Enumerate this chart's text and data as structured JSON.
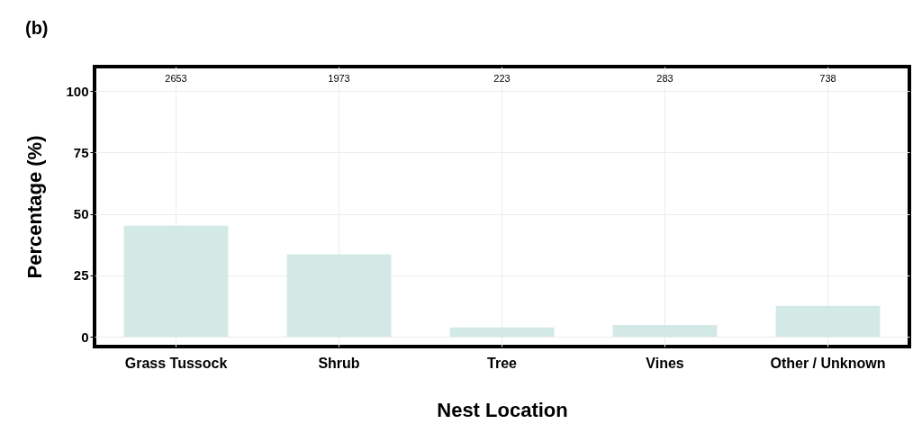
{
  "chart_data": {
    "type": "bar",
    "title": "(b)",
    "xlabel": "Nest Location",
    "ylabel": "Percentage (%)",
    "categories": [
      "Grass Tussock",
      "Shrub",
      "Tree",
      "Vines",
      "Other / Unknown"
    ],
    "values": [
      45.2,
      33.6,
      3.8,
      4.8,
      12.6
    ],
    "annotations": [
      "2653",
      "1973",
      "223",
      "283",
      "738"
    ],
    "color": "#d3e9e6",
    "ylim": [
      -4,
      110
    ],
    "yticks": [
      0,
      25,
      50,
      75,
      100
    ],
    "grid": true
  }
}
